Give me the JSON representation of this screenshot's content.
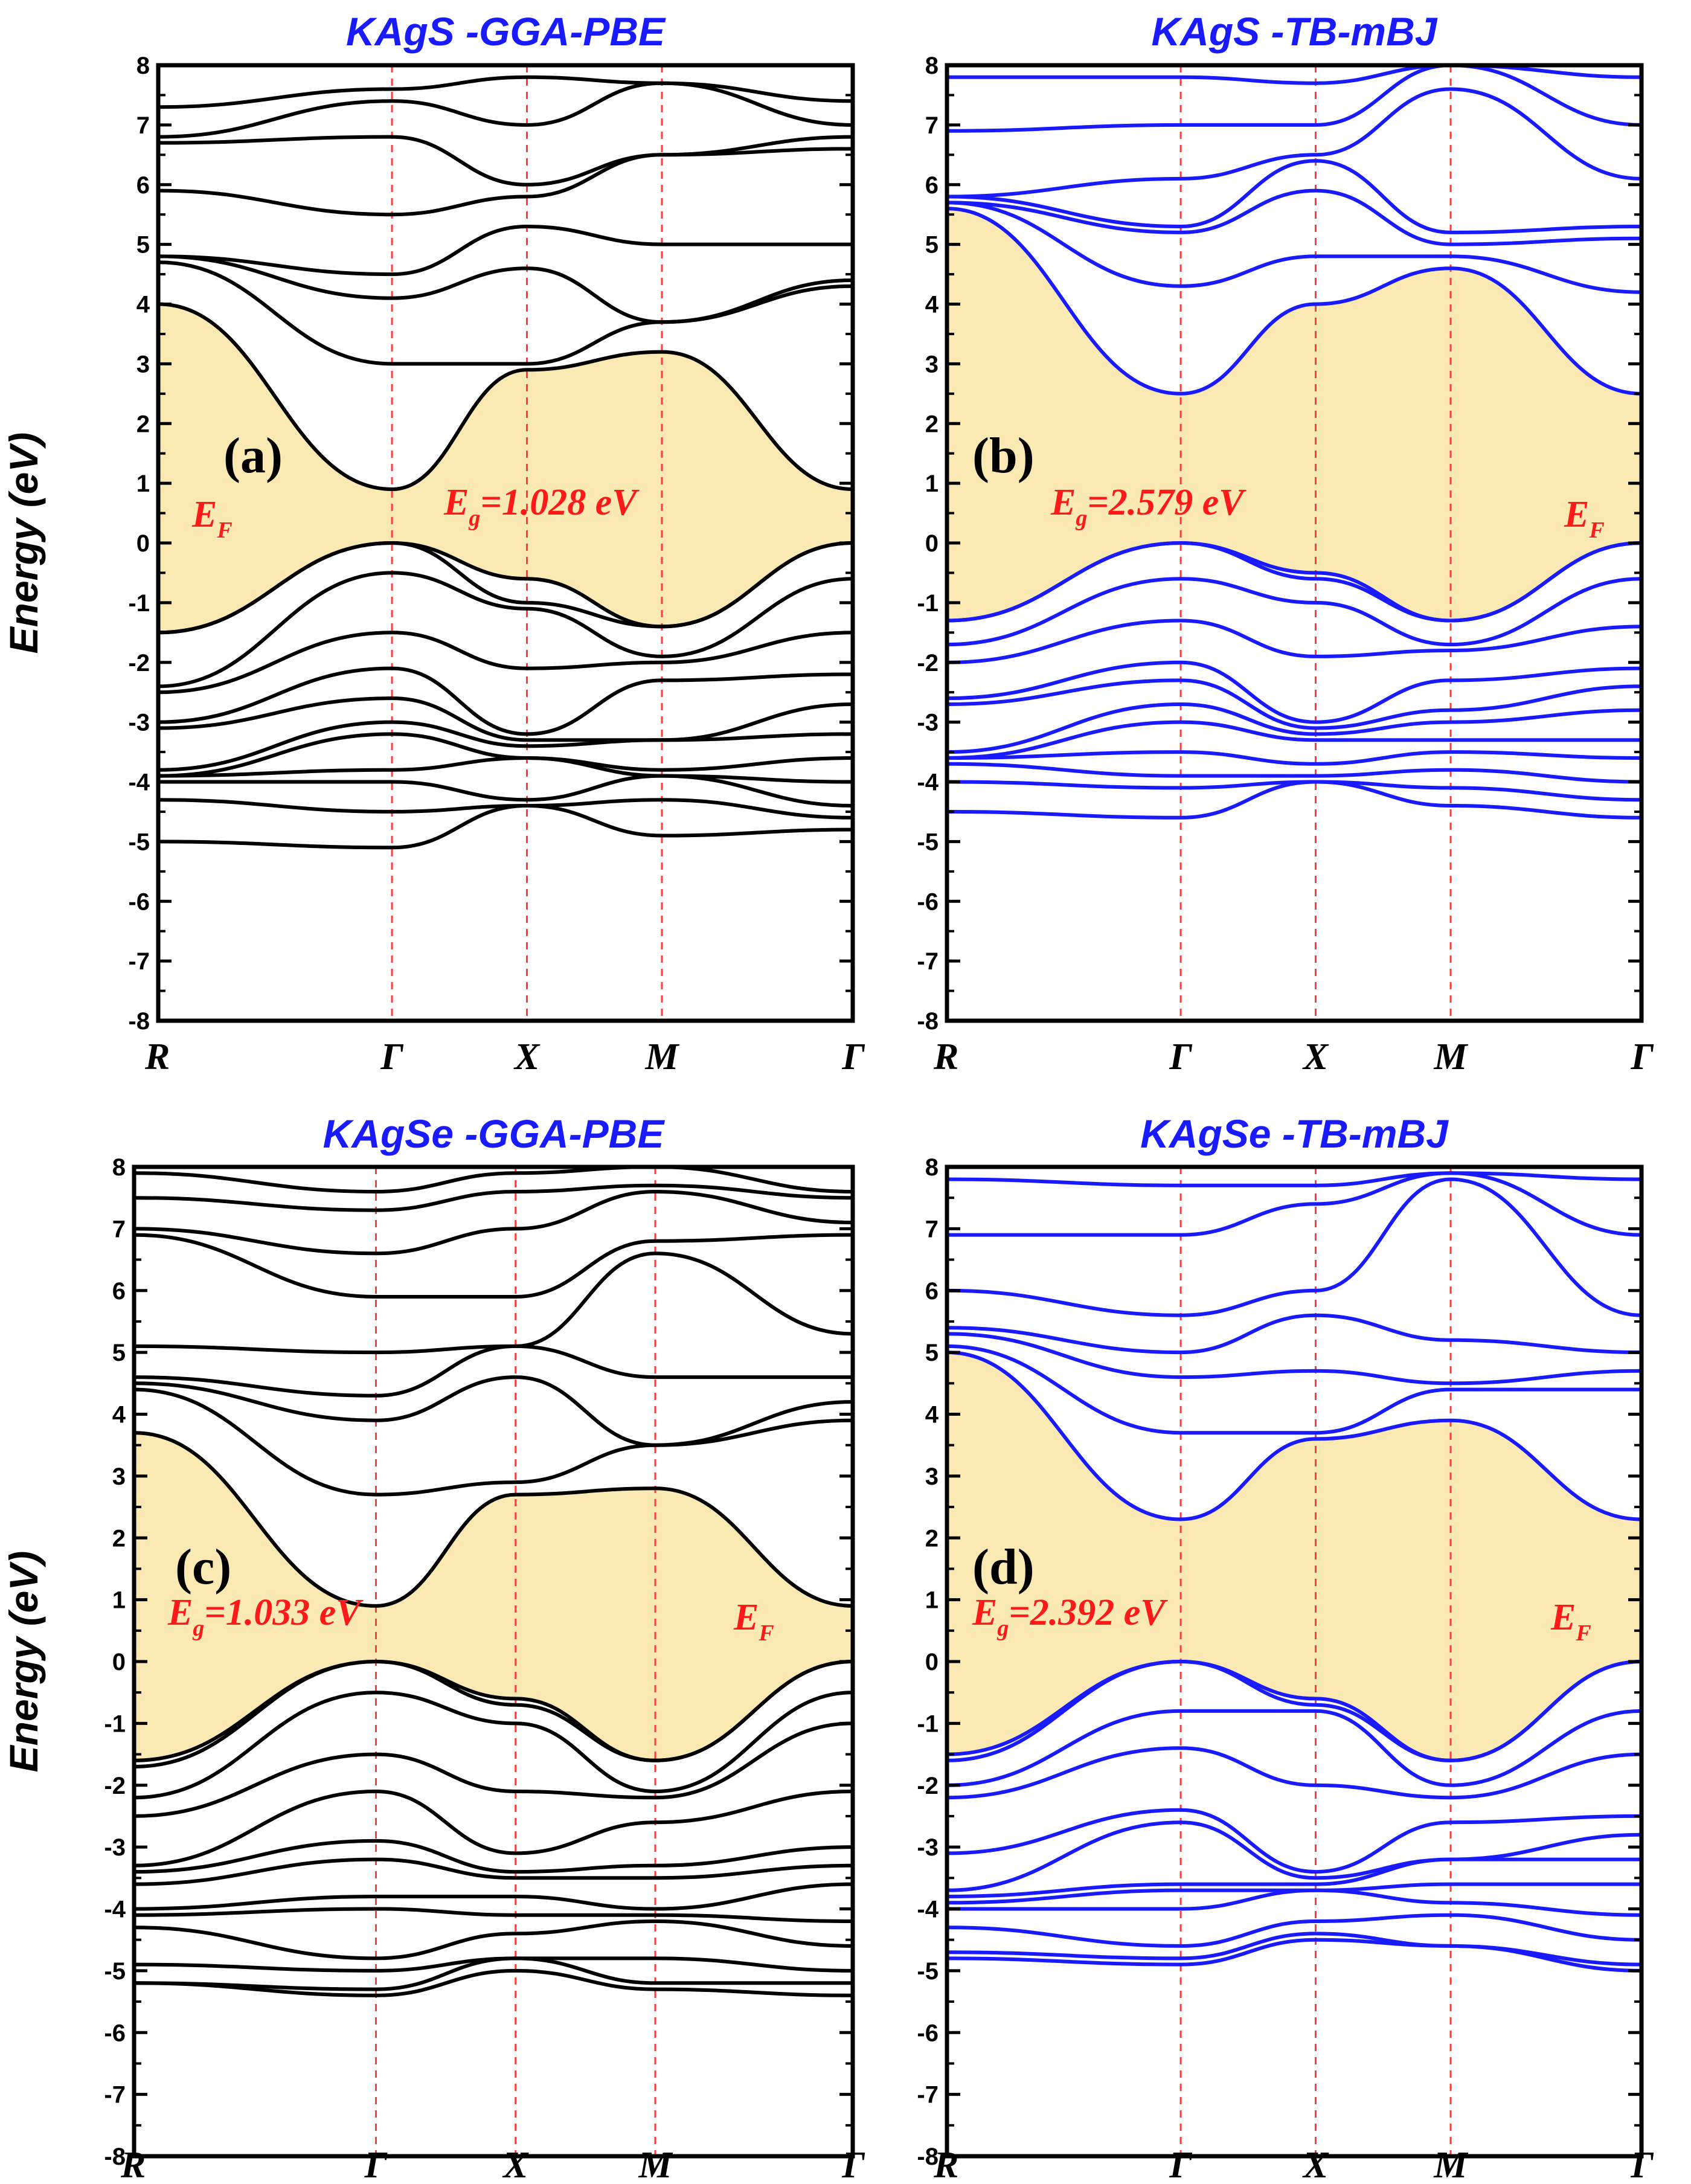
{
  "figure": {
    "y_axis_label": "Energy (eV)",
    "gap_fill_color": "#fbe9b4",
    "kpath_line_color": "#ff3b3b"
  },
  "chart_data": [
    {
      "id": "a",
      "type": "line",
      "title": "KAgS -GGA-PBE",
      "panel_label": "(a)",
      "ylabel": "Energy (eV)",
      "ylim": [
        -8,
        8
      ],
      "yticks": [
        8,
        7,
        6,
        5,
        4,
        3,
        2,
        1,
        0,
        -1,
        -2,
        -3,
        -4,
        -5,
        -6,
        -7,
        -8
      ],
      "k_labels": [
        "R",
        "Γ",
        "X",
        "M",
        "Γ"
      ],
      "k_ticks": [
        0,
        1.732,
        2.732,
        3.732,
        5.146
      ],
      "band_color": "#000000",
      "annotation": {
        "main": "E",
        "sub": "g",
        "rest": "=1.028 eV"
      },
      "fermi": {
        "main": "E",
        "sub": "F",
        "side": "left"
      },
      "gap_eV": 1.028,
      "cbm_gamma": 0.9,
      "vbm_gamma": 0.0,
      "conduction_bands": [
        {
          "R": 4.0,
          "G": 0.9,
          "X": 2.9,
          "M": 3.2,
          "G2": 0.9
        },
        {
          "R": 4.7,
          "G": 3.0,
          "X": 3.0,
          "M": 3.7,
          "G2": 4.3
        },
        {
          "R": 4.8,
          "G": 4.1,
          "X": 4.6,
          "M": 3.7,
          "G2": 4.4
        },
        {
          "R": 4.8,
          "G": 4.5,
          "X": 5.3,
          "M": 5.0,
          "G2": 5.0
        },
        {
          "R": 5.9,
          "G": 5.5,
          "X": 5.8,
          "M": 6.5,
          "G2": 6.6
        },
        {
          "R": 6.7,
          "G": 6.8,
          "X": 6.0,
          "M": 6.5,
          "G2": 6.8
        },
        {
          "R": 6.8,
          "G": 7.4,
          "X": 7.0,
          "M": 7.7,
          "G2": 7.0
        },
        {
          "R": 7.3,
          "G": 7.6,
          "X": 7.8,
          "M": 7.7,
          "G2": 7.4
        }
      ],
      "valence_bands": [
        {
          "R": -1.5,
          "G": 0.0,
          "X": -0.6,
          "M": -1.4,
          "G2": 0.0
        },
        {
          "R": -1.5,
          "G": 0.0,
          "X": -1.0,
          "M": -1.4,
          "G2": 0.0
        },
        {
          "R": -2.4,
          "G": -0.5,
          "X": -1.1,
          "M": -1.9,
          "G2": -0.6
        },
        {
          "R": -2.5,
          "G": -1.5,
          "X": -2.1,
          "M": -2.0,
          "G2": -1.5
        },
        {
          "R": -3.0,
          "G": -2.1,
          "X": -3.2,
          "M": -2.3,
          "G2": -2.2
        },
        {
          "R": -3.1,
          "G": -2.6,
          "X": -3.3,
          "M": -3.3,
          "G2": -2.7
        },
        {
          "R": -3.8,
          "G": -3.0,
          "X": -3.4,
          "M": -3.3,
          "G2": -3.2
        },
        {
          "R": -3.9,
          "G": -3.2,
          "X": -3.6,
          "M": -3.8,
          "G2": -3.6
        },
        {
          "R": -3.9,
          "G": -3.8,
          "X": -3.6,
          "M": -3.9,
          "G2": -4.0
        },
        {
          "R": -4.0,
          "G": -4.0,
          "X": -4.3,
          "M": -3.9,
          "G2": -4.4
        },
        {
          "R": -4.3,
          "G": -4.5,
          "X": -4.4,
          "M": -4.3,
          "G2": -4.6
        },
        {
          "R": -5.0,
          "G": -5.1,
          "X": -4.4,
          "M": -4.9,
          "G2": -4.8
        }
      ]
    },
    {
      "id": "b",
      "type": "line",
      "title": "KAgS -TB-mBJ",
      "panel_label": "(b)",
      "ylabel": "",
      "ylim": [
        -8,
        8
      ],
      "yticks": [
        8,
        7,
        6,
        5,
        4,
        3,
        2,
        1,
        0,
        -1,
        -2,
        -3,
        -4,
        -5,
        -6,
        -7,
        -8
      ],
      "k_labels": [
        "R",
        "Γ",
        "X",
        "M",
        "Γ"
      ],
      "k_ticks": [
        0,
        1.732,
        2.732,
        3.732,
        5.146
      ],
      "band_color": "#1a1aff",
      "annotation": {
        "main": "E",
        "sub": "g",
        "rest": "=2.579 eV"
      },
      "fermi": {
        "main": "E",
        "sub": "F",
        "side": "right"
      },
      "gap_eV": 2.579,
      "cbm_gamma": 2.5,
      "vbm_gamma": 0.0,
      "conduction_bands": [
        {
          "R": 5.6,
          "G": 2.5,
          "X": 4.0,
          "M": 4.6,
          "G2": 2.5
        },
        {
          "R": 5.7,
          "G": 4.3,
          "X": 4.8,
          "M": 4.8,
          "G2": 4.2
        },
        {
          "R": 5.7,
          "G": 5.2,
          "X": 5.9,
          "M": 5.0,
          "G2": 5.1
        },
        {
          "R": 5.8,
          "G": 5.3,
          "X": 6.4,
          "M": 5.2,
          "G2": 5.3
        },
        {
          "R": 5.8,
          "G": 6.1,
          "X": 6.5,
          "M": 7.6,
          "G2": 6.1
        },
        {
          "R": 6.9,
          "G": 7.0,
          "X": 7.0,
          "M": 8.0,
          "G2": 7.0
        },
        {
          "R": 7.8,
          "G": 7.8,
          "X": 7.7,
          "M": 8.0,
          "G2": 7.8
        }
      ],
      "valence_bands": [
        {
          "R": -1.3,
          "G": 0.0,
          "X": -0.5,
          "M": -1.3,
          "G2": 0.0
        },
        {
          "R": -1.3,
          "G": 0.0,
          "X": -0.6,
          "M": -1.3,
          "G2": 0.0
        },
        {
          "R": -1.7,
          "G": -0.6,
          "X": -1.0,
          "M": -1.7,
          "G2": -0.6
        },
        {
          "R": -2.0,
          "G": -1.3,
          "X": -1.9,
          "M": -1.8,
          "G2": -1.4
        },
        {
          "R": -2.6,
          "G": -2.0,
          "X": -3.0,
          "M": -2.3,
          "G2": -2.1
        },
        {
          "R": -2.7,
          "G": -2.3,
          "X": -3.1,
          "M": -2.8,
          "G2": -2.4
        },
        {
          "R": -3.5,
          "G": -2.7,
          "X": -3.2,
          "M": -3.0,
          "G2": -2.8
        },
        {
          "R": -3.6,
          "G": -3.0,
          "X": -3.3,
          "M": -3.3,
          "G2": -3.3
        },
        {
          "R": -3.6,
          "G": -3.5,
          "X": -3.7,
          "M": -3.5,
          "G2": -3.6
        },
        {
          "R": -3.7,
          "G": -3.9,
          "X": -3.9,
          "M": -3.8,
          "G2": -4.0
        },
        {
          "R": -4.0,
          "G": -4.1,
          "X": -4.0,
          "M": -4.1,
          "G2": -4.3
        },
        {
          "R": -4.5,
          "G": -4.6,
          "X": -4.0,
          "M": -4.4,
          "G2": -4.6
        }
      ]
    },
    {
      "id": "c",
      "type": "line",
      "title": "KAgSe -GGA-PBE",
      "panel_label": "(c)",
      "ylabel": "Energy (eV)",
      "ylim": [
        -8,
        8
      ],
      "yticks": [
        8,
        7,
        6,
        5,
        4,
        3,
        2,
        1,
        0,
        -1,
        -2,
        -3,
        -4,
        -5,
        -6,
        -7,
        -8
      ],
      "k_labels": [
        "R",
        "Γ",
        "X",
        "M",
        "Γ"
      ],
      "k_ticks": [
        0,
        1.732,
        2.732,
        3.732,
        5.146
      ],
      "band_color": "#000000",
      "annotation": {
        "main": "E",
        "sub": "g",
        "rest": "=1.033 eV"
      },
      "fermi": {
        "main": "E",
        "sub": "F",
        "side": "right"
      },
      "gap_eV": 1.033,
      "cbm_gamma": 0.9,
      "vbm_gamma": 0.0,
      "conduction_bands": [
        {
          "R": 3.7,
          "G": 0.9,
          "X": 2.7,
          "M": 2.8,
          "G2": 0.9
        },
        {
          "R": 4.4,
          "G": 2.7,
          "X": 2.9,
          "M": 3.5,
          "G2": 3.9
        },
        {
          "R": 4.5,
          "G": 3.9,
          "X": 4.6,
          "M": 3.5,
          "G2": 4.2
        },
        {
          "R": 4.6,
          "G": 4.3,
          "X": 5.1,
          "M": 4.6,
          "G2": 4.6
        },
        {
          "R": 5.1,
          "G": 5.0,
          "X": 5.1,
          "M": 6.6,
          "G2": 5.3
        },
        {
          "R": 6.9,
          "G": 5.9,
          "X": 5.9,
          "M": 6.8,
          "G2": 6.9
        },
        {
          "R": 7.0,
          "G": 6.6,
          "X": 7.0,
          "M": 7.6,
          "G2": 7.1
        },
        {
          "R": 7.5,
          "G": 7.3,
          "X": 7.6,
          "M": 7.7,
          "G2": 7.5
        },
        {
          "R": 7.9,
          "G": 7.6,
          "X": 7.9,
          "M": 8.0,
          "G2": 7.6
        }
      ],
      "valence_bands": [
        {
          "R": -1.6,
          "G": 0.0,
          "X": -0.6,
          "M": -1.6,
          "G2": 0.0
        },
        {
          "R": -1.7,
          "G": 0.0,
          "X": -0.7,
          "M": -1.6,
          "G2": 0.0
        },
        {
          "R": -2.2,
          "G": -0.5,
          "X": -1.0,
          "M": -2.1,
          "G2": -0.5
        },
        {
          "R": -2.5,
          "G": -1.5,
          "X": -2.1,
          "M": -2.2,
          "G2": -1.0
        },
        {
          "R": -3.3,
          "G": -2.1,
          "X": -3.1,
          "M": -2.6,
          "G2": -2.1
        },
        {
          "R": -3.4,
          "G": -2.9,
          "X": -3.4,
          "M": -3.3,
          "G2": -3.0
        },
        {
          "R": -3.6,
          "G": -3.2,
          "X": -3.5,
          "M": -3.5,
          "G2": -3.3
        },
        {
          "R": -4.0,
          "G": -3.8,
          "X": -3.8,
          "M": -4.0,
          "G2": -3.6
        },
        {
          "R": -4.1,
          "G": -4.0,
          "X": -4.1,
          "M": -4.1,
          "G2": -4.2
        },
        {
          "R": -4.3,
          "G": -4.8,
          "X": -4.4,
          "M": -4.2,
          "G2": -4.6
        },
        {
          "R": -4.9,
          "G": -5.0,
          "X": -4.8,
          "M": -4.8,
          "G2": -5.0
        },
        {
          "R": -5.2,
          "G": -5.3,
          "X": -4.8,
          "M": -5.2,
          "G2": -5.2
        },
        {
          "R": -5.2,
          "G": -5.4,
          "X": -5.0,
          "M": -5.3,
          "G2": -5.4
        }
      ]
    },
    {
      "id": "d",
      "type": "line",
      "title": "KAgSe -TB-mBJ",
      "panel_label": "(d)",
      "ylabel": "",
      "ylim": [
        -8,
        8
      ],
      "yticks": [
        8,
        7,
        6,
        5,
        4,
        3,
        2,
        1,
        0,
        -1,
        -2,
        -3,
        -4,
        -5,
        -6,
        -7,
        -8
      ],
      "k_labels": [
        "R",
        "Γ",
        "X",
        "M",
        "Γ"
      ],
      "k_ticks": [
        0,
        1.732,
        2.732,
        3.732,
        5.146
      ],
      "band_color": "#1a1aff",
      "annotation": {
        "main": "E",
        "sub": "g",
        "rest": "=2.392 eV"
      },
      "fermi": {
        "main": "E",
        "sub": "F",
        "side": "right"
      },
      "gap_eV": 2.392,
      "cbm_gamma": 2.3,
      "vbm_gamma": 0.0,
      "conduction_bands": [
        {
          "R": 5.0,
          "G": 2.3,
          "X": 3.6,
          "M": 3.9,
          "G2": 2.3
        },
        {
          "R": 5.1,
          "G": 3.7,
          "X": 3.7,
          "M": 4.4,
          "G2": 4.4
        },
        {
          "R": 5.3,
          "G": 4.6,
          "X": 4.7,
          "M": 4.5,
          "G2": 4.7
        },
        {
          "R": 5.4,
          "G": 5.0,
          "X": 5.6,
          "M": 5.2,
          "G2": 5.0
        },
        {
          "R": 6.0,
          "G": 5.6,
          "X": 6.0,
          "M": 7.8,
          "G2": 5.6
        },
        {
          "R": 6.9,
          "G": 6.9,
          "X": 7.4,
          "M": 7.9,
          "G2": 6.9
        },
        {
          "R": 7.8,
          "G": 7.7,
          "X": 7.7,
          "M": 7.9,
          "G2": 7.8
        }
      ],
      "valence_bands": [
        {
          "R": -1.5,
          "G": 0.0,
          "X": -0.6,
          "M": -1.6,
          "G2": 0.0
        },
        {
          "R": -1.6,
          "G": 0.0,
          "X": -0.7,
          "M": -1.6,
          "G2": 0.0
        },
        {
          "R": -2.0,
          "G": -0.8,
          "X": -0.8,
          "M": -2.0,
          "G2": -0.8
        },
        {
          "R": -2.2,
          "G": -1.4,
          "X": -2.0,
          "M": -2.2,
          "G2": -1.5
        },
        {
          "R": -3.1,
          "G": -2.4,
          "X": -3.4,
          "M": -2.6,
          "G2": -2.5
        },
        {
          "R": -3.7,
          "G": -2.6,
          "X": -3.5,
          "M": -3.2,
          "G2": -2.8
        },
        {
          "R": -3.8,
          "G": -3.6,
          "X": -3.6,
          "M": -3.2,
          "G2": -3.2
        },
        {
          "R": -3.9,
          "G": -3.7,
          "X": -3.7,
          "M": -3.6,
          "G2": -3.6
        },
        {
          "R": -4.0,
          "G": -4.0,
          "X": -3.7,
          "M": -3.9,
          "G2": -4.1
        },
        {
          "R": -4.3,
          "G": -4.6,
          "X": -4.2,
          "M": -4.1,
          "G2": -4.5
        },
        {
          "R": -4.7,
          "G": -4.8,
          "X": -4.4,
          "M": -4.6,
          "G2": -4.9
        },
        {
          "R": -4.8,
          "G": -4.9,
          "X": -4.5,
          "M": -4.6,
          "G2": -5.0
        }
      ]
    }
  ]
}
